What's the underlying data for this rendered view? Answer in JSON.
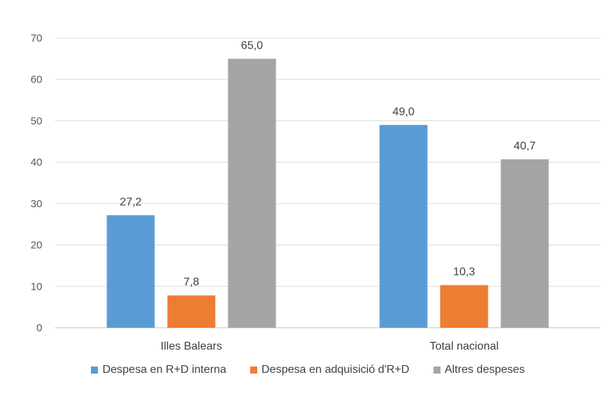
{
  "chart_data": {
    "type": "bar",
    "categories": [
      "Illes Balears",
      "Total nacional"
    ],
    "series": [
      {
        "name": "Despesa en R+D interna",
        "values": [
          27.2,
          49.0
        ],
        "labels": [
          "27,2",
          "49,0"
        ],
        "color": "#5b9bd5"
      },
      {
        "name": "Despesa en adquisició d'R+D",
        "values": [
          7.8,
          10.3
        ],
        "labels": [
          "7,8",
          "10,3"
        ],
        "color": "#ed7d31"
      },
      {
        "name": "Altres despeses",
        "values": [
          65.0,
          40.7
        ],
        "labels": [
          "65,0",
          "40,7"
        ],
        "color": "#a5a5a5"
      }
    ],
    "yticks": [
      "0",
      "10",
      "20",
      "30",
      "40",
      "50",
      "60",
      "70"
    ],
    "ylim": [
      0,
      70
    ],
    "grid": true,
    "legend_position": "bottom",
    "title": "",
    "xlabel": "",
    "ylabel": ""
  }
}
